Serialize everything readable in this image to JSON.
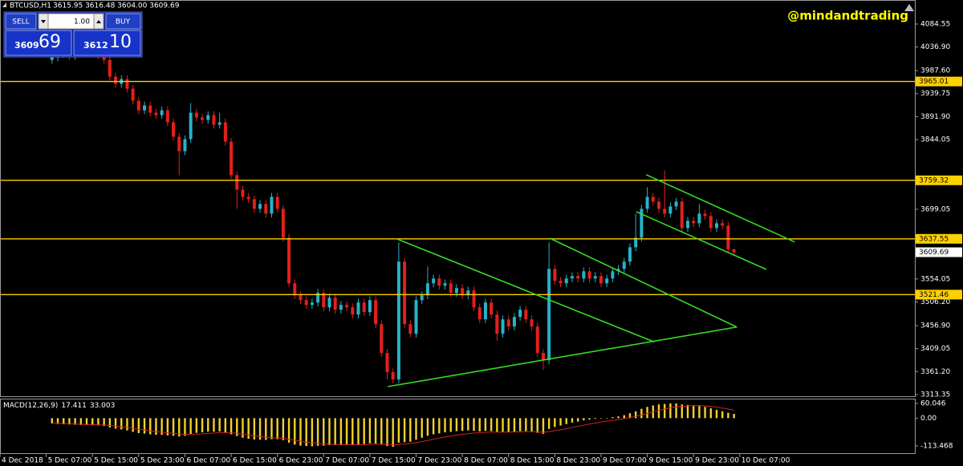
{
  "header": {
    "symbol": "BTCUSD,H1",
    "ohlc": "3615.95 3616.48 3604.00 3609.69"
  },
  "trade_panel": {
    "sell": "SELL",
    "lot": "1.00",
    "buy": "BUY",
    "bid_prefix": "3609",
    "bid_pips": "69",
    "ask_prefix": "3612",
    "ask_pips": "10"
  },
  "watermark": "@mindandtrading",
  "chart_data": [
    {
      "type": "candlestick",
      "open": [
        4010,
        4015,
        4022,
        4028,
        4018,
        4025,
        4030,
        4035,
        4028,
        4020,
        4010,
        3975,
        3960,
        3970,
        3950,
        3925,
        3905,
        3915,
        3900,
        3895,
        3905,
        3880,
        3850,
        3820,
        3845,
        3900,
        3890,
        3885,
        3895,
        3875,
        3880,
        3840,
        3770,
        3740,
        3725,
        3720,
        3700,
        3710,
        3690,
        3725,
        3700,
        3640,
        3545,
        3520,
        3510,
        3500,
        3505,
        3525,
        3495,
        3515,
        3490,
        3500,
        3495,
        3480,
        3505,
        3485,
        3510,
        3460,
        3400,
        3360,
        3345,
        3590,
        3460,
        3440,
        3510,
        3520,
        3545,
        3555,
        3540,
        3545,
        3525,
        3535,
        3520,
        3530,
        3495,
        3470,
        3505,
        3480,
        3440,
        3470,
        3455,
        3475,
        3490,
        3470,
        3455,
        3400,
        3385,
        3575,
        3550,
        3545,
        3555,
        3560,
        3555,
        3570,
        3555,
        3560,
        3545,
        3555,
        3570,
        3575,
        3590,
        3620,
        3640,
        3700,
        3725,
        3715,
        3700,
        3690,
        3705,
        3715,
        3660,
        3675,
        3670,
        3690,
        3685,
        3660,
        3670,
        3665,
        3615.95
      ],
      "high": [
        4023,
        4030,
        4036,
        4036,
        4033,
        4038,
        4043,
        4043,
        4036,
        4028,
        4018,
        3983,
        3978,
        3978,
        3958,
        3933,
        3923,
        3923,
        3908,
        3913,
        3913,
        3888,
        3858,
        3853,
        3920,
        3908,
        3898,
        3903,
        3903,
        3900,
        3888,
        3848,
        3778,
        3748,
        3733,
        3728,
        3718,
        3718,
        3733,
        3733,
        3708,
        3648,
        3553,
        3528,
        3518,
        3513,
        3533,
        3533,
        3523,
        3523,
        3508,
        3508,
        3503,
        3513,
        3513,
        3518,
        3518,
        3468,
        3408,
        3368,
        3630,
        3598,
        3468,
        3518,
        3528,
        3580,
        3563,
        3563,
        3553,
        3553,
        3543,
        3543,
        3538,
        3538,
        3503,
        3513,
        3513,
        3488,
        3478,
        3478,
        3483,
        3498,
        3498,
        3478,
        3463,
        3408,
        3630,
        3583,
        3558,
        3563,
        3568,
        3568,
        3578,
        3578,
        3568,
        3568,
        3563,
        3578,
        3583,
        3598,
        3628,
        3690,
        3708,
        3745,
        3733,
        3723,
        3780,
        3713,
        3723,
        3723,
        3683,
        3683,
        3710,
        3698,
        3693,
        3678,
        3678,
        3673,
        3616.48
      ],
      "low": [
        4002,
        4007,
        4014,
        4010,
        4010,
        4017,
        4022,
        4020,
        4012,
        4002,
        3967,
        3952,
        3952,
        3942,
        3917,
        3897,
        3897,
        3892,
        3887,
        3887,
        3872,
        3842,
        3770,
        3812,
        3837,
        3882,
        3877,
        3877,
        3867,
        3867,
        3832,
        3762,
        3700,
        3717,
        3712,
        3692,
        3692,
        3682,
        3682,
        3692,
        3632,
        3537,
        3512,
        3502,
        3492,
        3492,
        3497,
        3487,
        3487,
        3482,
        3482,
        3487,
        3472,
        3472,
        3477,
        3477,
        3452,
        3392,
        3345,
        3337,
        3337,
        3452,
        3432,
        3432,
        3502,
        3512,
        3537,
        3532,
        3532,
        3517,
        3517,
        3512,
        3512,
        3487,
        3462,
        3462,
        3472,
        3425,
        3432,
        3447,
        3447,
        3467,
        3462,
        3447,
        3392,
        3365,
        3377,
        3542,
        3537,
        3537,
        3547,
        3547,
        3547,
        3547,
        3547,
        3537,
        3537,
        3547,
        3562,
        3567,
        3582,
        3612,
        3632,
        3692,
        3707,
        3692,
        3682,
        3682,
        3697,
        3652,
        3652,
        3662,
        3662,
        3677,
        3652,
        3652,
        3657,
        3610,
        3604
      ],
      "close": [
        4015,
        4022,
        4028,
        4018,
        4025,
        4030,
        4035,
        4028,
        4020,
        4010,
        3975,
        3960,
        3970,
        3950,
        3925,
        3905,
        3915,
        3900,
        3895,
        3905,
        3880,
        3850,
        3820,
        3845,
        3900,
        3890,
        3885,
        3895,
        3875,
        3880,
        3840,
        3770,
        3740,
        3725,
        3720,
        3700,
        3710,
        3690,
        3725,
        3700,
        3640,
        3545,
        3520,
        3510,
        3500,
        3505,
        3525,
        3495,
        3515,
        3490,
        3500,
        3495,
        3480,
        3505,
        3485,
        3510,
        3460,
        3400,
        3360,
        3345,
        3590,
        3460,
        3440,
        3510,
        3520,
        3545,
        3555,
        3540,
        3545,
        3525,
        3535,
        3520,
        3530,
        3495,
        3470,
        3505,
        3480,
        3440,
        3470,
        3455,
        3475,
        3490,
        3470,
        3455,
        3400,
        3385,
        3575,
        3550,
        3545,
        3555,
        3560,
        3555,
        3570,
        3555,
        3560,
        3545,
        3555,
        3570,
        3575,
        3590,
        3620,
        3640,
        3700,
        3725,
        3715,
        3700,
        3690,
        3705,
        3715,
        3660,
        3675,
        3670,
        3690,
        3685,
        3660,
        3670,
        3665,
        3615.95,
        3609.69
      ],
      "up_color": "#26b3c9",
      "down_color": "#e3201b",
      "xlim": [
        -9,
        149.3
      ],
      "xticks": [
        {
          "value": -9,
          "label": "4 Dec 2018"
        },
        {
          "value": -1,
          "label": "5 Dec 07:00"
        },
        {
          "value": 7,
          "label": "5 Dec 15:00"
        },
        {
          "value": 15,
          "label": "5 Dec 23:00"
        },
        {
          "value": 23,
          "label": "6 Dec 07:00"
        },
        {
          "value": 31,
          "label": "6 Dec 15:00"
        },
        {
          "value": 39,
          "label": "6 Dec 23:00"
        },
        {
          "value": 47,
          "label": "7 Dec 07:00"
        },
        {
          "value": 55,
          "label": "7 Dec 15:00"
        },
        {
          "value": 63,
          "label": "7 Dec 23:00"
        },
        {
          "value": 71,
          "label": "8 Dec 07:00"
        },
        {
          "value": 79,
          "label": "8 Dec 15:00"
        },
        {
          "value": 87,
          "label": "8 Dec 23:00"
        },
        {
          "value": 95,
          "label": "9 Dec 07:00"
        },
        {
          "value": 103,
          "label": "9 Dec 15:00"
        },
        {
          "value": 111,
          "label": "9 Dec 23:00"
        },
        {
          "value": 119,
          "label": "10 Dec 07:00"
        }
      ],
      "ylim": [
        3310.0,
        4134.6
      ],
      "yticks": [
        4084.55,
        {
          "value": 4036.9,
          "label": "4036.90"
        },
        {
          "value": 3987.6,
          "label": "3987.60"
        },
        3939.75,
        {
          "value": 3891.9,
          "label": "3891.90"
        },
        3844.05,
        3699.05,
        3554.05,
        {
          "value": 3506.2,
          "label": "3506.20"
        },
        {
          "value": 3456.9,
          "label": "3456.90"
        },
        3409.05,
        {
          "value": 3361.2,
          "label": "3361.20"
        },
        3313.35
      ],
      "levels": [
        3965.01,
        3759.32,
        3637.55,
        3521.46
      ],
      "level_color": "#ffd000",
      "current_price": 3609.69,
      "trendlines": [
        {
          "x": [
            59.75,
            104.2
          ],
          "y": [
            3637,
            3423
          ]
        },
        {
          "x": [
            58.1,
            118.5
          ],
          "y": [
            3330,
            3454
          ]
        },
        {
          "x": [
            86.1,
            118.5
          ],
          "y": [
            3639,
            3454
          ]
        },
        {
          "x": [
            102.8,
            128.5
          ],
          "y": [
            3771,
            3631
          ]
        },
        {
          "x": [
            101.1,
            123.6
          ],
          "y": [
            3694,
            3574
          ]
        }
      ],
      "trendline_color": "#33dd22"
    },
    {
      "type": "macd",
      "title": "MACD(12,26,9)",
      "values": [
        -22,
        -24,
        -25,
        -26,
        -27,
        -28,
        -28,
        -29,
        -30,
        -32,
        -38,
        -43,
        -46,
        -50,
        -56,
        -61,
        -63,
        -66,
        -68,
        -68,
        -70,
        -72,
        -75,
        -72,
        -64,
        -60,
        -58,
        -55,
        -55,
        -54,
        -58,
        -66,
        -73,
        -80,
        -84,
        -87,
        -88,
        -89,
        -86,
        -86,
        -90,
        -100,
        -108,
        -112,
        -114,
        -115,
        -113,
        -112,
        -110,
        -110,
        -109,
        -109,
        -110,
        -107,
        -106,
        -103,
        -104,
        -108,
        -114,
        -117,
        -100,
        -98,
        -96,
        -88,
        -80,
        -72,
        -66,
        -62,
        -58,
        -56,
        -53,
        -52,
        -50,
        -52,
        -54,
        -52,
        -53,
        -56,
        -56,
        -57,
        -55,
        -53,
        -53,
        -55,
        -60,
        -64,
        -44,
        -36,
        -30,
        -24,
        -18,
        -14,
        -9,
        -6,
        -3,
        -1,
        1,
        4,
        7,
        12,
        20,
        28,
        38,
        46,
        52,
        56,
        58,
        60,
        60,
        56,
        54,
        52,
        50,
        46,
        40,
        34,
        28,
        22,
        17.411
      ],
      "signal": [
        -20,
        -21,
        -22,
        -23,
        -24,
        -25,
        -26,
        -27,
        -27,
        -28,
        -30,
        -32,
        -35,
        -38,
        -41,
        -45,
        -48,
        -52,
        -55,
        -57,
        -60,
        -62,
        -64,
        -66,
        -66,
        -65,
        -64,
        -62,
        -61,
        -59,
        -59,
        -60,
        -62,
        -65,
        -69,
        -72,
        -75,
        -78,
        -80,
        -81,
        -83,
        -86,
        -90,
        -94,
        -98,
        -101,
        -103,
        -105,
        -106,
        -107,
        -108,
        -108,
        -108,
        -108,
        -108,
        -107,
        -106,
        -106,
        -107,
        -109,
        -107,
        -105,
        -103,
        -100,
        -96,
        -91,
        -86,
        -81,
        -77,
        -73,
        -69,
        -66,
        -63,
        -61,
        -59,
        -58,
        -57,
        -57,
        -57,
        -57,
        -56,
        -56,
        -55,
        -55,
        -56,
        -58,
        -55,
        -51,
        -47,
        -43,
        -38,
        -33,
        -29,
        -24,
        -20,
        -16,
        -12,
        -9,
        -6,
        -2,
        2,
        7,
        13,
        19,
        26,
        32,
        37,
        42,
        46,
        48,
        50,
        51,
        51,
        50,
        48,
        45,
        41,
        37,
        33.003
      ],
      "color": "#f2d22a",
      "signal_color": "#d42020",
      "ylim": [
        -146.2,
        76.4
      ],
      "yticks": [
        60.046,
        {
          "value": 0,
          "label": "0.00"
        },
        -113.468
      ]
    }
  ]
}
